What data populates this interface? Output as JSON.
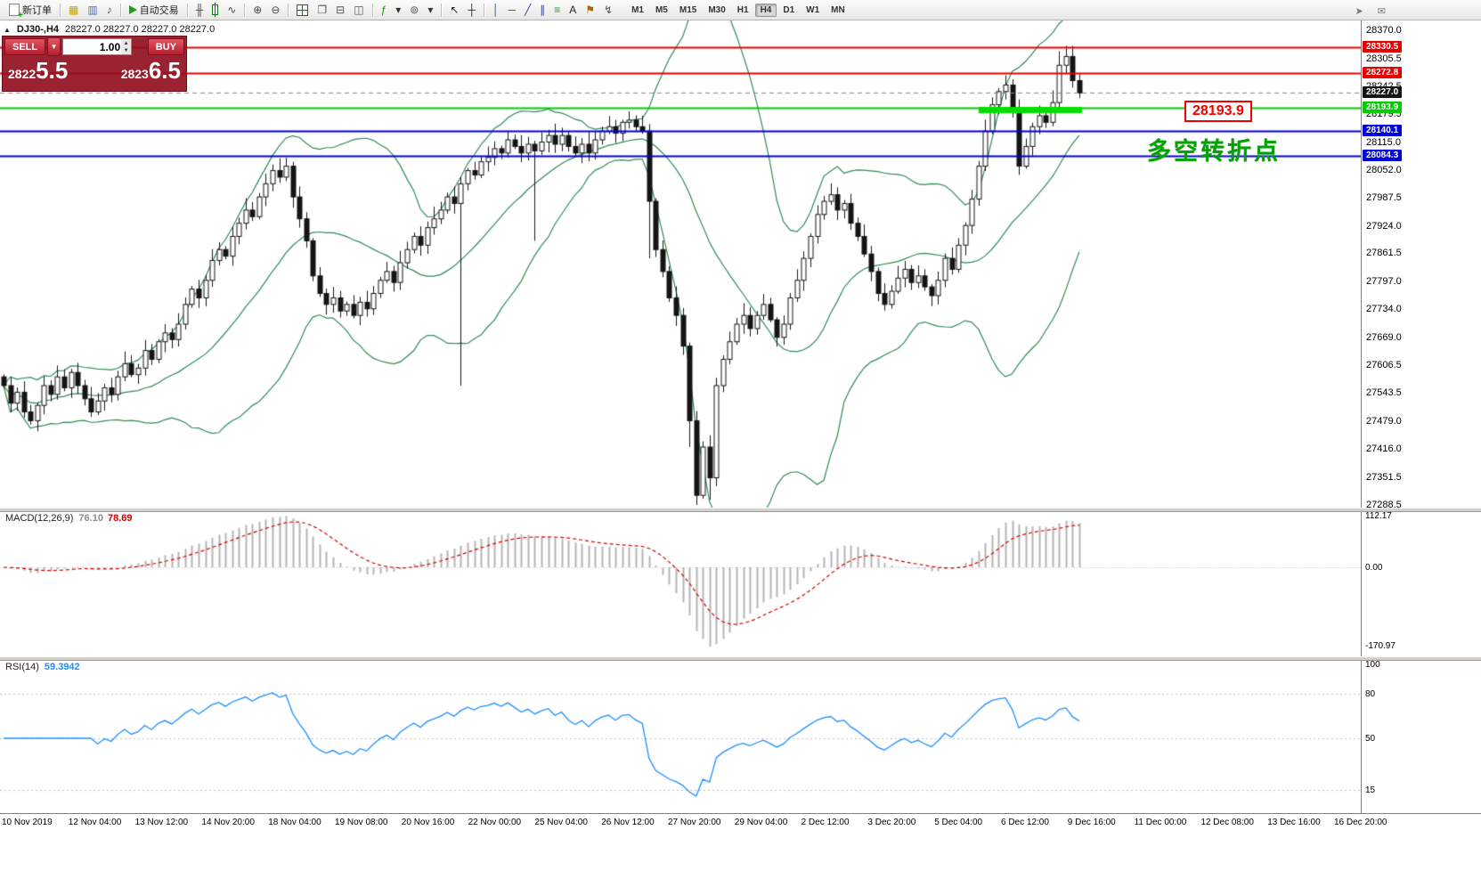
{
  "colors": {
    "bull_body": "#ffffff",
    "bear_body": "#141414",
    "candle_border": "#141414",
    "bollinger": "#2e8b57",
    "macd_hist": "#b4b4b4",
    "macd_signal": "#d40000",
    "rsi_line": "#1e90ff",
    "line_red": "#e80000",
    "line_green": "#00cc00",
    "line_blue": "#0000dc",
    "current_badge": "#141414",
    "highlight_green": "#00e000",
    "grid_dotted": "#c0c0c0"
  },
  "toolbar": {
    "groups": [
      {
        "items": [
          {
            "name": "new-order-button",
            "cls": "ci-doc",
            "text": "新订单"
          }
        ]
      },
      {
        "items": [
          {
            "name": "charts-profile-icon",
            "glyph": "▦",
            "color": "#c8a200"
          },
          {
            "name": "market-watch-icon",
            "glyph": "▥",
            "color": "#4a6fae"
          },
          {
            "name": "alerts-sound-icon",
            "glyph": "♪",
            "color": "#555555"
          }
        ]
      },
      {
        "items": [
          {
            "name": "autotrading-button",
            "cls": "ci-play",
            "text": "自动交易"
          }
        ]
      },
      {
        "items": [
          {
            "name": "bar-chart-icon",
            "glyph": "╫",
            "color": "#444444"
          },
          {
            "name": "candlestick-chart-icon",
            "cls": "ci-candle"
          },
          {
            "name": "line-chart-icon",
            "glyph": "∿",
            "color": "#444444"
          }
        ]
      },
      {
        "items": [
          {
            "name": "zoom-in-icon",
            "glyph": "⊕",
            "color": "#444444"
          },
          {
            "name": "zoom-out-icon",
            "glyph": "⊖",
            "color": "#444444"
          }
        ]
      },
      {
        "items": [
          {
            "name": "tile-windows-icon",
            "cls": "ci-grid"
          },
          {
            "name": "cascade-windows-icon",
            "glyph": "❐",
            "color": "#555555"
          },
          {
            "name": "tile-horizontal-icon",
            "glyph": "⊟",
            "color": "#555555"
          },
          {
            "name": "tile-vertical-icon",
            "glyph": "◫",
            "color": "#555555"
          }
        ]
      },
      {
        "items": [
          {
            "name": "indicators-icon",
            "glyph": "ƒ",
            "color": "#0a9a0a"
          },
          {
            "name": "indicators-caret-icon",
            "glyph": "▾",
            "color": "#333333"
          },
          {
            "name": "cycles-icon",
            "glyph": "⊚",
            "color": "#555555"
          },
          {
            "name": "objects-caret-icon",
            "glyph": "▾",
            "color": "#333333"
          }
        ]
      },
      {
        "items": [
          {
            "name": "cursor-icon",
            "glyph": "↖",
            "color": "#222222"
          },
          {
            "name": "crosshair-icon",
            "glyph": "┼",
            "color": "#222222"
          }
        ]
      },
      {
        "items": [
          {
            "name": "vertical-line-icon",
            "glyph": "│",
            "color": "#334488"
          },
          {
            "name": "horizontal-line-icon",
            "glyph": "─",
            "color": "#334488"
          },
          {
            "name": "trendline-icon",
            "glyph": "╱",
            "color": "#334488"
          },
          {
            "name": "channel-icon",
            "glyph": "∥",
            "color": "#334488"
          },
          {
            "name": "fibonacci-icon",
            "glyph": "≡",
            "color": "#2a8a2a"
          },
          {
            "name": "text-icon",
            "glyph": "A",
            "color": "#222222"
          },
          {
            "name": "label-icon",
            "glyph": "⚑",
            "color": "#aa6600"
          },
          {
            "name": "arrows-icon",
            "glyph": "↯",
            "color": "#555555"
          }
        ]
      }
    ],
    "timeframes": [
      "M1",
      "M5",
      "M15",
      "M30",
      "H1",
      "H4",
      "D1",
      "W1",
      "MN"
    ],
    "active_timeframe": "H4",
    "right_icons": [
      {
        "name": "pointer-arrow-icon",
        "glyph": "➤",
        "color": "#777777"
      },
      {
        "name": "chat-icon",
        "glyph": "✉",
        "color": "#777777"
      }
    ]
  },
  "chart": {
    "symbol_line": "DJ30-,H4",
    "ohlc_line": "28227.0 28227.0 28227.0 28227.0",
    "trade_widget": {
      "sell_label": "SELL",
      "buy_label": "BUY",
      "lot": "1.00",
      "sell_price": "28225.5",
      "buy_price": "28236.5",
      "sell_price_small": "2822",
      "sell_price_big": "5.5",
      "buy_price_small": "2823",
      "buy_price_big": "6.5"
    },
    "callout_text": "28193.9",
    "annotation_text": "多空转折点"
  },
  "chart_data": {
    "type": "candlestick",
    "title": "DJ30-,H4",
    "symbol": "DJ30-",
    "timeframe": "H4",
    "y_range": [
      27282,
      28392
    ],
    "first_open": 27580,
    "closes": [
      27560,
      27520,
      27545,
      27500,
      27480,
      27515,
      27560,
      27540,
      27580,
      27555,
      27590,
      27560,
      27530,
      27500,
      27525,
      27555,
      27540,
      27580,
      27610,
      27585,
      27600,
      27640,
      27620,
      27660,
      27680,
      27665,
      27700,
      27745,
      27780,
      27760,
      27800,
      27845,
      27870,
      27855,
      27900,
      27930,
      27960,
      27945,
      27990,
      28020,
      28050,
      28035,
      28060,
      27990,
      27940,
      27890,
      27810,
      27770,
      27745,
      27760,
      27730,
      27745,
      27720,
      27750,
      27735,
      27770,
      27800,
      27820,
      27795,
      27840,
      27870,
      27900,
      27880,
      27920,
      27940,
      27960,
      27990,
      27975,
      28020,
      28050,
      28040,
      28070,
      28080,
      28100,
      28090,
      28120,
      28105,
      28090,
      28110,
      28095,
      28115,
      28130,
      28110,
      28130,
      28105,
      28090,
      28110,
      28090,
      28120,
      28140,
      28150,
      28135,
      28160,
      28165,
      28150,
      28140,
      27980,
      27870,
      27820,
      27760,
      27720,
      27650,
      27480,
      27310,
      27420,
      27350,
      27560,
      27620,
      27660,
      27700,
      27720,
      27690,
      27720,
      27745,
      27710,
      27670,
      27700,
      27760,
      27800,
      27850,
      27900,
      27950,
      27980,
      27995,
      27960,
      27975,
      27930,
      27900,
      27860,
      27820,
      27770,
      27745,
      27775,
      27805,
      27825,
      27795,
      27810,
      27785,
      27765,
      27800,
      27850,
      27825,
      27880,
      27925,
      27985,
      28060,
      28140,
      28200,
      28230,
      28245,
      28185,
      28060,
      28105,
      28150,
      28175,
      28160,
      28205,
      28290,
      28310,
      28255,
      28227
    ],
    "wick_overrides": {
      "42": {
        "high": 28072
      },
      "68": {
        "low": 27560
      },
      "79": {
        "low": 27890
      },
      "93": {
        "high": 28172
      },
      "96": {
        "low": 27850
      },
      "102": {
        "low": 27420
      },
      "103": {
        "low": 27288
      },
      "105": {
        "low": 27300
      },
      "151": {
        "low": 28040
      },
      "157": {
        "high": 28322
      },
      "158": {
        "high": 28334
      }
    },
    "bollinger": {
      "period": 20,
      "deviation": 2
    },
    "macd": {
      "fast": 12,
      "slow": 26,
      "signal": 9,
      "label": "MACD(12,26,9)",
      "value_main": "76.10",
      "value_signal": "78.69",
      "scale_labels": [
        "112.17",
        "0.00",
        "-170.97"
      ],
      "scale_values": [
        112.17,
        0,
        -170.97
      ]
    },
    "rsi": {
      "period": 14,
      "label": "RSI(14)",
      "value": "59.3942",
      "scale_labels": [
        "100",
        "80",
        "50",
        "15"
      ],
      "scale_values": [
        100,
        80,
        50,
        15
      ],
      "levels": [
        80,
        50,
        15
      ]
    },
    "time_labels": [
      "10 Nov 2019",
      "12 Nov 04:00",
      "13 Nov 12:00",
      "14 Nov 20:00",
      "18 Nov 04:00",
      "19 Nov 08:00",
      "20 Nov 16:00",
      "22 Nov 00:00",
      "25 Nov 04:00",
      "26 Nov 12:00",
      "27 Nov 20:00",
      "29 Nov 04:00",
      "2 Dec 12:00",
      "3 Dec 20:00",
      "5 Dec 04:00",
      "6 Dec 12:00",
      "9 Dec 16:00",
      "11 Dec 00:00",
      "12 Dec 08:00",
      "13 Dec 16:00",
      "16 Dec 20:00"
    ],
    "price_scale_ticks": [
      "28370.0",
      "28305.5",
      "28242.5",
      "28179.5",
      "28115.0",
      "28052.0",
      "27987.5",
      "27924.0",
      "27861.5",
      "27797.0",
      "27734.0",
      "27669.0",
      "27606.5",
      "27543.5",
      "27479.0",
      "27416.0",
      "27351.5",
      "27288.5"
    ],
    "price_lines": [
      {
        "price": 28330.5,
        "label": "28330.5",
        "color": "#e80000",
        "width": 2
      },
      {
        "price": 28272.8,
        "label": "28272.8",
        "color": "#e80000",
        "width": 2
      },
      {
        "price": 28193.9,
        "label": "28193.9",
        "color": "#00cc00",
        "width": 2
      },
      {
        "price": 28140.1,
        "label": "28140.1",
        "color": "#0000dc",
        "width": 2
      },
      {
        "price": 28084.3,
        "label": "28084.3",
        "color": "#0000dc",
        "width": 2
      }
    ],
    "current_price": {
      "value": 28227.0,
      "label": "28227.0"
    },
    "highlight_segment": {
      "price": 28193.9,
      "from_bar": 145,
      "to_bar": 160,
      "color": "#00e000",
      "thickness": 7
    }
  }
}
